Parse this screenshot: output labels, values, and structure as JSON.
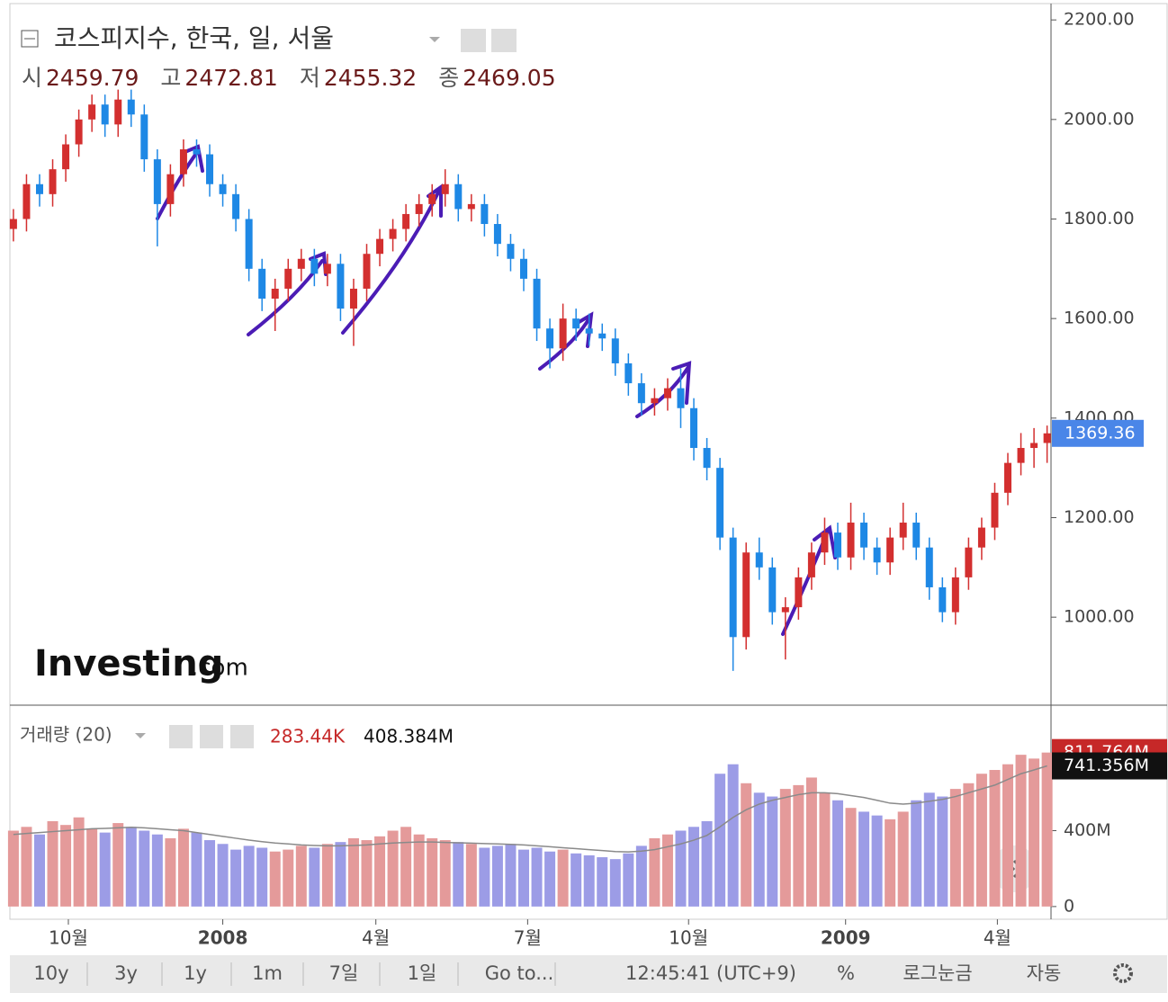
{
  "header": {
    "title": "코스피지수, 한국, 일, 서울",
    "ohlc": [
      {
        "label": "시",
        "value": 2459.79
      },
      {
        "label": "고",
        "value": 2472.81
      },
      {
        "label": "저",
        "value": 2455.32
      },
      {
        "label": "종",
        "value": 2469.05
      }
    ]
  },
  "logo": {
    "brand": "Investing",
    "suffix": ".com"
  },
  "volume_legend": {
    "title": "거래량 (20)",
    "value1": "283.44K",
    "value2": "408.384M"
  },
  "toolbar": {
    "buttons": [
      "10y",
      "3y",
      "1y",
      "1m",
      "7일",
      "1일",
      "Go to..."
    ],
    "time": "12:45:41 (UTC+9)",
    "right": [
      "%",
      "로그눈금",
      "자동"
    ]
  },
  "chart_data": [
    {
      "type": "candlestick",
      "up_color": "#d32f2f",
      "down_color": "#1e88e5",
      "ylim": [
        825,
        2231
      ],
      "xlim": [
        -0.2,
        79.3
      ],
      "yticks": [
        {
          "value": 1000,
          "label": "1000.00"
        },
        {
          "value": 1200,
          "label": "1200.00"
        },
        {
          "value": 1400,
          "label": "1400.00"
        },
        {
          "value": 1600,
          "label": "1600.00"
        },
        {
          "value": 1800,
          "label": "1800.00"
        },
        {
          "value": 2000,
          "label": "2000.00"
        },
        {
          "value": 2200,
          "label": "2200.00"
        }
      ],
      "xticks": [
        {
          "value": 4.2,
          "label": "10월"
        },
        {
          "value": 16.0,
          "label": "2008"
        },
        {
          "value": 27.7,
          "label": "4월"
        },
        {
          "value": 39.3,
          "label": "7월"
        },
        {
          "value": 51.6,
          "label": "10월"
        },
        {
          "value": 63.6,
          "label": "2009"
        },
        {
          "value": 75.2,
          "label": "4월"
        }
      ],
      "open": [
        1780,
        1800,
        1870,
        1850,
        1900,
        1950,
        2000,
        2030,
        1990,
        2040,
        2010,
        1920,
        1830,
        1890,
        1940,
        1930,
        1870,
        1850,
        1800,
        1700,
        1640,
        1660,
        1700,
        1720,
        1690,
        1710,
        1620,
        1660,
        1730,
        1760,
        1780,
        1810,
        1830,
        1850,
        1870,
        1820,
        1830,
        1790,
        1750,
        1720,
        1680,
        1580,
        1540,
        1600,
        1580,
        1570,
        1560,
        1510,
        1470,
        1430,
        1440,
        1460,
        1420,
        1340,
        1300,
        1160,
        960,
        1130,
        1100,
        1010,
        1020,
        1080,
        1130,
        1170,
        1120,
        1190,
        1140,
        1110,
        1160,
        1190,
        1140,
        1060,
        1010,
        1080,
        1140,
        1180,
        1250,
        1310,
        1340,
        1350
      ],
      "high": [
        1820,
        1890,
        1890,
        1920,
        1970,
        2020,
        2050,
        2050,
        2060,
        2060,
        2030,
        1940,
        1910,
        1960,
        1960,
        1950,
        1890,
        1870,
        1820,
        1720,
        1680,
        1720,
        1740,
        1740,
        1730,
        1730,
        1680,
        1750,
        1780,
        1800,
        1830,
        1850,
        1870,
        1900,
        1890,
        1850,
        1850,
        1810,
        1770,
        1740,
        1700,
        1600,
        1630,
        1620,
        1610,
        1590,
        1580,
        1530,
        1490,
        1460,
        1480,
        1500,
        1440,
        1360,
        1320,
        1180,
        1150,
        1160,
        1120,
        1040,
        1100,
        1150,
        1200,
        1190,
        1230,
        1210,
        1160,
        1180,
        1230,
        1210,
        1160,
        1080,
        1100,
        1160,
        1200,
        1270,
        1330,
        1370,
        1380,
        1385
      ],
      "low": [
        1755,
        1775,
        1825,
        1825,
        1875,
        1925,
        1975,
        1965,
        1965,
        1985,
        1895,
        1745,
        1805,
        1865,
        1905,
        1845,
        1825,
        1775,
        1675,
        1615,
        1575,
        1635,
        1675,
        1665,
        1665,
        1595,
        1545,
        1635,
        1705,
        1735,
        1755,
        1785,
        1805,
        1825,
        1795,
        1795,
        1765,
        1725,
        1695,
        1655,
        1555,
        1500,
        1515,
        1555,
        1545,
        1535,
        1485,
        1445,
        1405,
        1405,
        1415,
        1380,
        1315,
        1275,
        1135,
        892,
        935,
        1075,
        985,
        915,
        995,
        1055,
        1105,
        1095,
        1095,
        1115,
        1085,
        1085,
        1135,
        1115,
        1035,
        990,
        985,
        1055,
        1115,
        1155,
        1225,
        1285,
        1300,
        1310
      ],
      "close": [
        1800,
        1870,
        1850,
        1900,
        1950,
        2000,
        2030,
        1990,
        2040,
        2010,
        1920,
        1830,
        1890,
        1940,
        1930,
        1870,
        1850,
        1800,
        1700,
        1640,
        1660,
        1700,
        1720,
        1690,
        1710,
        1620,
        1660,
        1730,
        1760,
        1780,
        1810,
        1830,
        1850,
        1870,
        1820,
        1830,
        1790,
        1750,
        1720,
        1680,
        1580,
        1540,
        1600,
        1580,
        1570,
        1560,
        1510,
        1470,
        1430,
        1440,
        1460,
        1420,
        1340,
        1300,
        1160,
        960,
        1130,
        1100,
        1010,
        1020,
        1080,
        1130,
        1170,
        1120,
        1190,
        1140,
        1110,
        1160,
        1190,
        1140,
        1060,
        1010,
        1080,
        1140,
        1180,
        1250,
        1310,
        1340,
        1350,
        1369.36
      ],
      "last_label_color": "#4a86e8"
    },
    {
      "type": "volume",
      "up_color": "#e49a9a",
      "down_color": "#9c9ce6",
      "ylim": [
        -67,
        1052
      ],
      "yticks": [
        0,
        {
          "value": 400,
          "label": "400M"
        }
      ],
      "values": [
        400,
        420,
        380,
        450,
        430,
        470,
        410,
        390,
        440,
        420,
        400,
        380,
        360,
        410,
        390,
        350,
        330,
        300,
        320,
        310,
        290,
        300,
        320,
        310,
        330,
        340,
        360,
        350,
        370,
        400,
        420,
        380,
        360,
        350,
        340,
        330,
        310,
        320,
        330,
        300,
        310,
        290,
        300,
        280,
        270,
        260,
        250,
        280,
        320,
        360,
        380,
        400,
        420,
        450,
        700,
        750,
        650,
        600,
        580,
        620,
        640,
        680,
        600,
        560,
        520,
        500,
        480,
        460,
        500,
        560,
        600,
        580,
        620,
        650,
        700,
        720,
        750,
        800,
        780,
        811.764
      ],
      "value_labels": {
        "79": "811.764M"
      },
      "ma": {
        "color": "#8a8a8a",
        "values": [
          380,
          385,
          390,
          395,
          400,
          405,
          410,
          412,
          415,
          418,
          415,
          410,
          405,
          400,
          390,
          380,
          370,
          360,
          350,
          342,
          335,
          330,
          325,
          322,
          320,
          320,
          322,
          325,
          330,
          335,
          338,
          340,
          340,
          338,
          336,
          334,
          332,
          330,
          328,
          325,
          320,
          315,
          310,
          305,
          300,
          295,
          290,
          288,
          292,
          300,
          315,
          330,
          350,
          375,
          420,
          470,
          510,
          540,
          560,
          575,
          590,
          600,
          600,
          595,
          585,
          575,
          560,
          545,
          540,
          545,
          555,
          565,
          580,
          600,
          620,
          640,
          670,
          700,
          720,
          741.356
        ],
        "value_labels": {
          "79": "741.356M"
        }
      }
    }
  ]
}
